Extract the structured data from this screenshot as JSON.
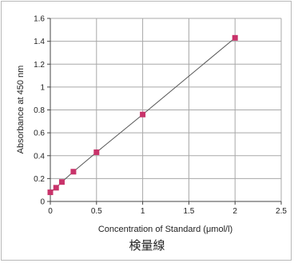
{
  "chart_data": {
    "type": "scatter",
    "xlabel": "Concentration of Standard (μmol/l)",
    "ylabel": "Absorbance at 450 nm",
    "xlim": [
      0,
      2.5
    ],
    "ylim": [
      0,
      1.6
    ],
    "xticks": [
      "0",
      "0.5",
      "1",
      "1.5",
      "2",
      "2.5"
    ],
    "yticks": [
      "0",
      "0.2",
      "0.4",
      "0.6",
      "0.8",
      "1",
      "1.2",
      "1.4",
      "1.6"
    ],
    "grid": true,
    "trendline": true,
    "series": [
      {
        "x": [
          0,
          0.0625,
          0.125,
          0.25,
          0.5,
          1,
          2
        ],
        "y": [
          0.08,
          0.12,
          0.17,
          0.26,
          0.43,
          0.76,
          1.43
        ],
        "color": "#c8336a"
      }
    ]
  },
  "caption": "検量線"
}
